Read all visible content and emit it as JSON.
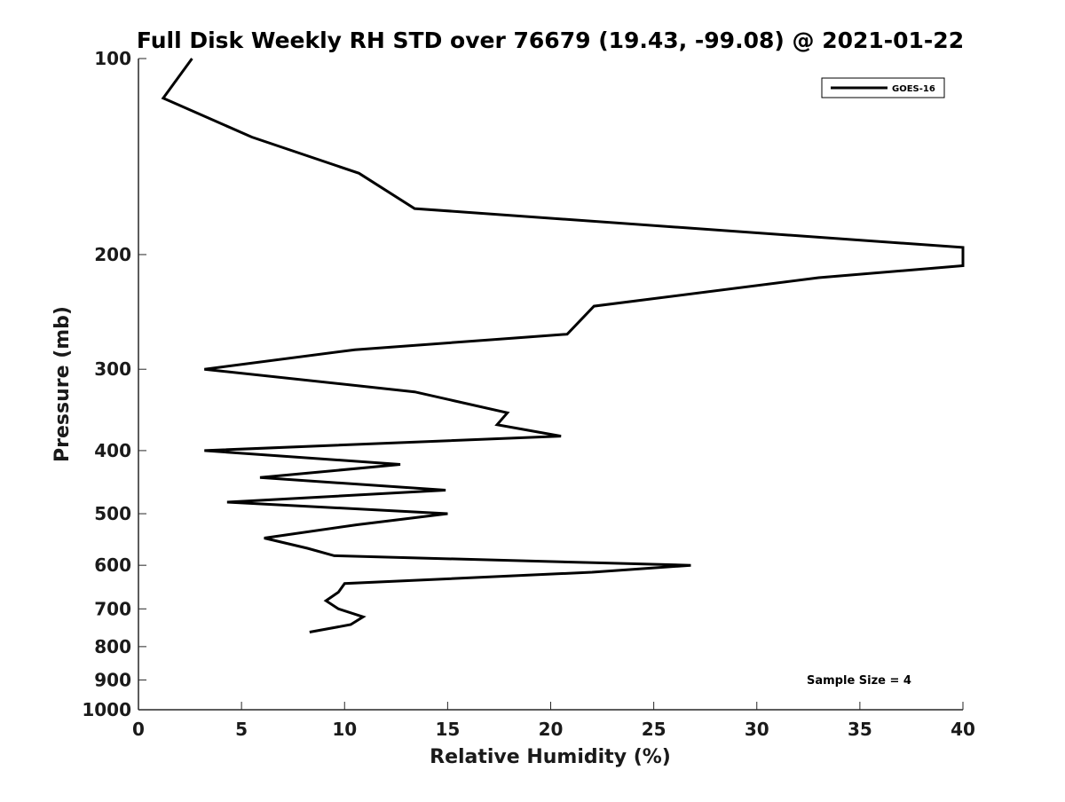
{
  "chart_data": {
    "type": "line",
    "title": "Full Disk Weekly RH STD over 76679 (19.43, -99.08) @ 2021-01-22",
    "xlabel": "Relative Humidity (%)",
    "ylabel": "Pressure (mb)",
    "xlim": [
      0,
      40
    ],
    "ylim": [
      100,
      1000
    ],
    "y_scale": "log",
    "y_reversed": true,
    "grid": false,
    "x_ticks": [
      0,
      5,
      10,
      15,
      20,
      25,
      30,
      35,
      40
    ],
    "x_tick_labels": [
      "0",
      "5",
      "10",
      "15",
      "20",
      "25",
      "30",
      "35",
      "40"
    ],
    "y_ticks": [
      100,
      200,
      300,
      400,
      500,
      600,
      700,
      800,
      900,
      1000
    ],
    "y_tick_labels": [
      "100",
      "200",
      "300",
      "400",
      "500",
      "600",
      "700",
      "800",
      "900",
      "1000"
    ],
    "legend_position": "top-right",
    "series": [
      {
        "name": "GOES-16",
        "color": "#000000",
        "points": [
          {
            "x": 2.6,
            "p": 100
          },
          {
            "x": 1.2,
            "p": 115
          },
          {
            "x": 5.5,
            "p": 132
          },
          {
            "x": 10.7,
            "p": 150
          },
          {
            "x": 13.4,
            "p": 170
          },
          {
            "x": 40.0,
            "p": 195
          },
          {
            "x": 40.0,
            "p": 208
          },
          {
            "x": 33.0,
            "p": 217
          },
          {
            "x": 22.1,
            "p": 240
          },
          {
            "x": 20.8,
            "p": 265
          },
          {
            "x": 10.5,
            "p": 280
          },
          {
            "x": 3.2,
            "p": 300
          },
          {
            "x": 13.4,
            "p": 325
          },
          {
            "x": 17.9,
            "p": 350
          },
          {
            "x": 17.4,
            "p": 365
          },
          {
            "x": 20.5,
            "p": 380
          },
          {
            "x": 3.2,
            "p": 400
          },
          {
            "x": 12.7,
            "p": 420
          },
          {
            "x": 5.9,
            "p": 440
          },
          {
            "x": 14.9,
            "p": 460
          },
          {
            "x": 4.3,
            "p": 480
          },
          {
            "x": 15.0,
            "p": 500
          },
          {
            "x": 10.6,
            "p": 520
          },
          {
            "x": 6.1,
            "p": 545
          },
          {
            "x": 8.2,
            "p": 565
          },
          {
            "x": 9.5,
            "p": 580
          },
          {
            "x": 26.8,
            "p": 600
          },
          {
            "x": 22.0,
            "p": 615
          },
          {
            "x": 10.0,
            "p": 640
          },
          {
            "x": 9.7,
            "p": 660
          },
          {
            "x": 9.1,
            "p": 680
          },
          {
            "x": 9.7,
            "p": 700
          },
          {
            "x": 10.9,
            "p": 720
          },
          {
            "x": 10.3,
            "p": 740
          },
          {
            "x": 8.3,
            "p": 760
          }
        ]
      }
    ],
    "annotations": [
      {
        "text": "Sample Size = 4"
      }
    ]
  }
}
